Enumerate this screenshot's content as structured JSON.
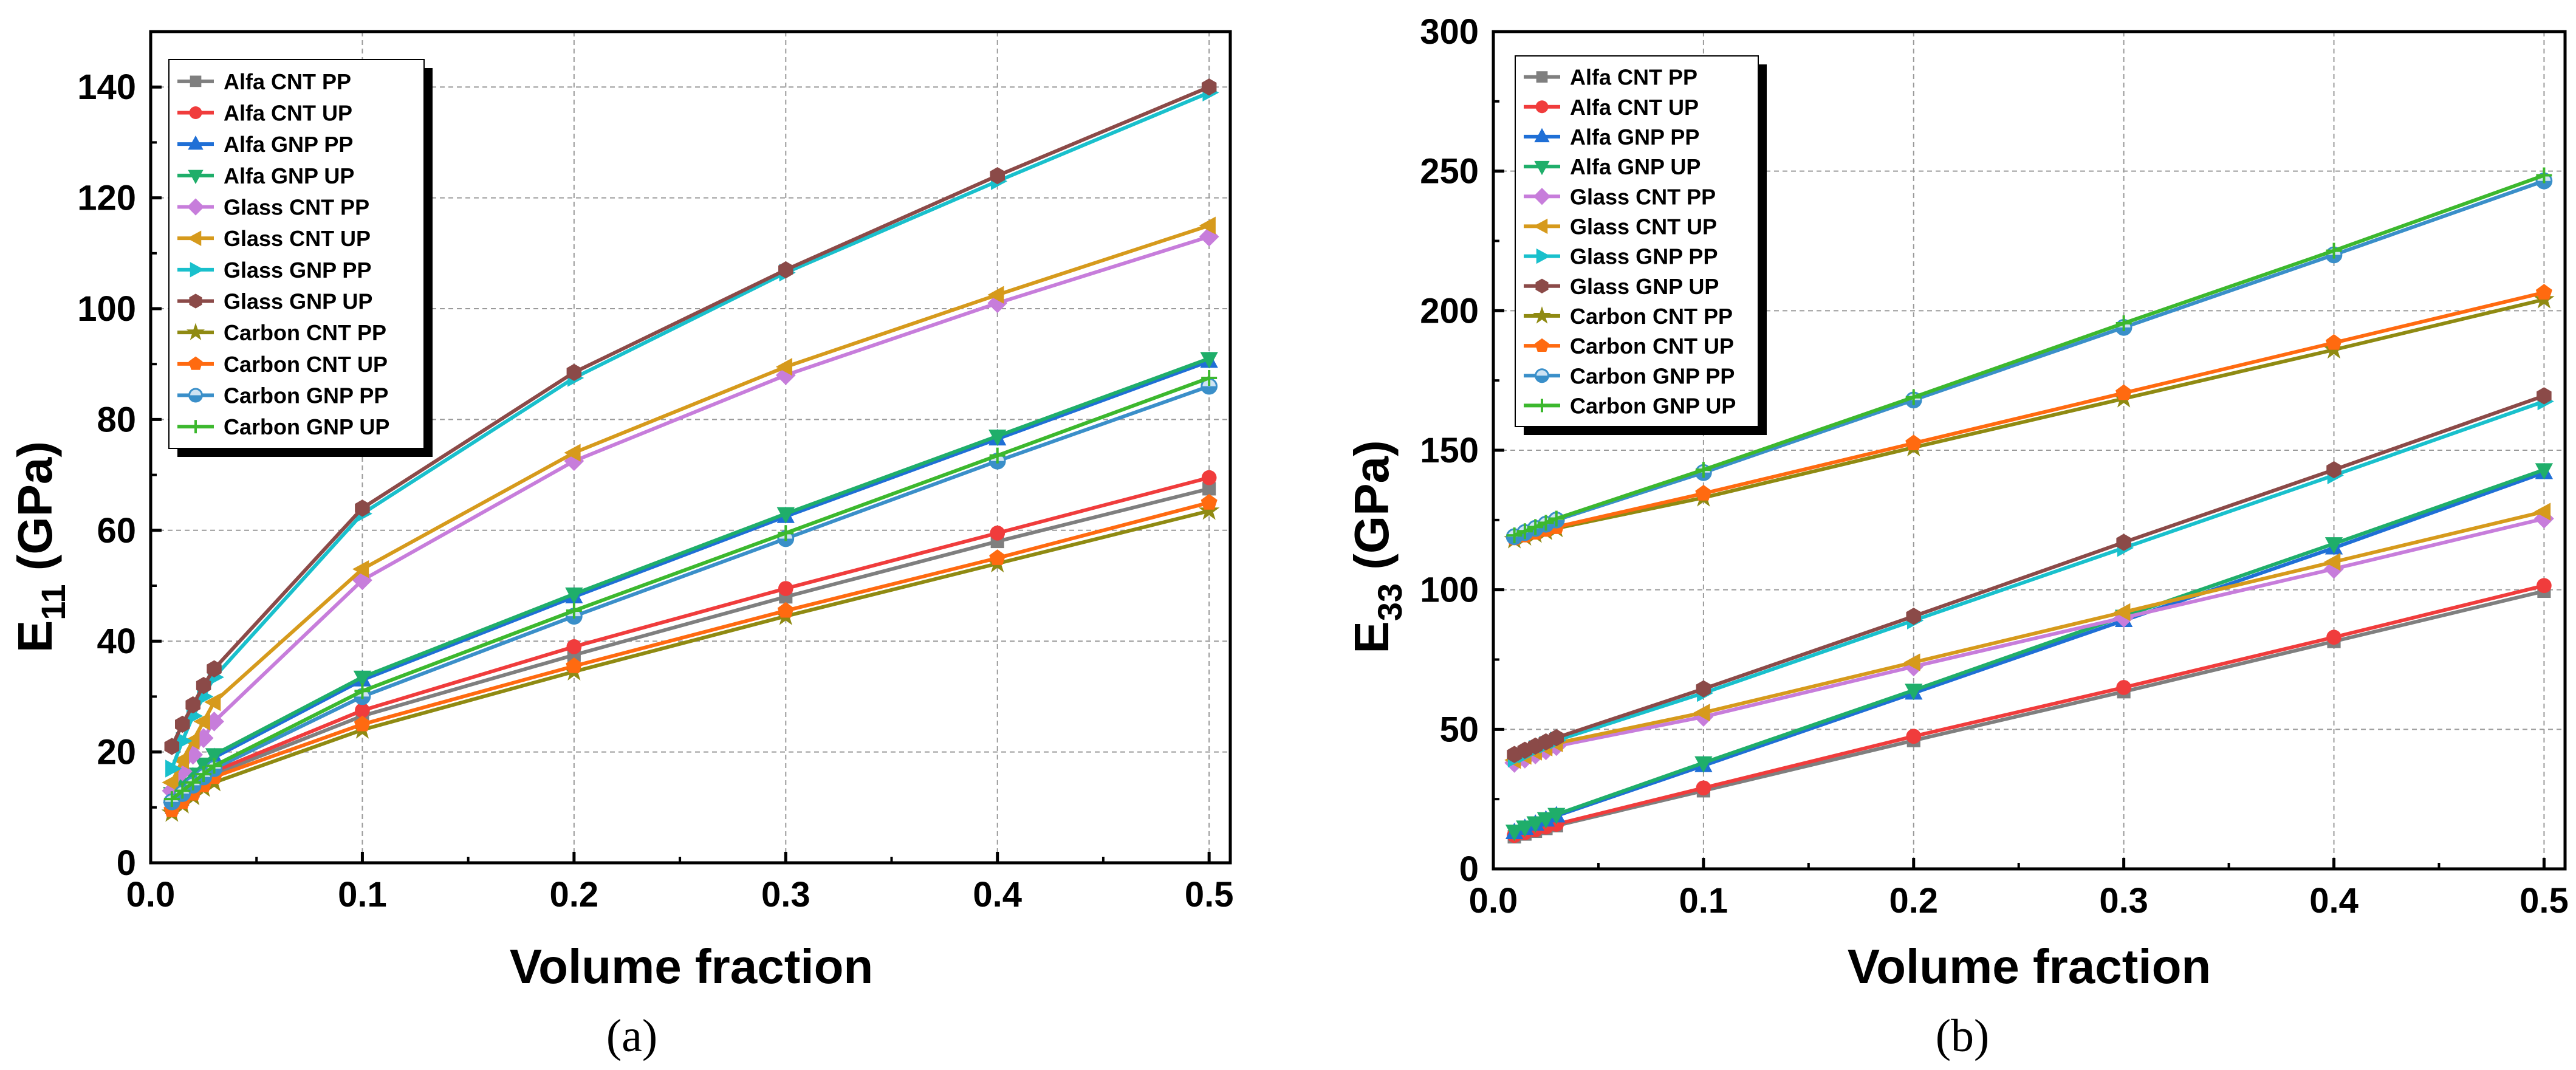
{
  "chart_data": [
    {
      "type": "line",
      "caption": "(a)",
      "xlabel": "Volume fraction",
      "ylabel_main": "E",
      "ylabel_sub": "11",
      "ylabel_unit": " (GPa)",
      "xlim": [
        0.0,
        0.51
      ],
      "ylim": [
        0,
        150
      ],
      "xticks": [
        0.0,
        0.1,
        0.2,
        0.3,
        0.4,
        0.5
      ],
      "xtick_labels": [
        "0.0",
        "0.1",
        "0.2",
        "0.3",
        "0.4",
        "0.5"
      ],
      "yticks": [
        0,
        20,
        40,
        60,
        80,
        100,
        120,
        140
      ],
      "ytick_labels": [
        "0",
        "20",
        "40",
        "60",
        "80",
        "100",
        "120",
        "140"
      ],
      "grid": true,
      "legend_position": "top-left",
      "x": [
        0.01,
        0.015,
        0.02,
        0.025,
        0.03,
        0.1,
        0.2,
        0.3,
        0.4,
        0.5
      ],
      "series": [
        {
          "name": "Alfa CNT PP",
          "color": "#7f7f7f",
          "marker": "square",
          "values": [
            10,
            11.5,
            13,
            14.5,
            16,
            26.5,
            37.5,
            48,
            58,
            67.5
          ]
        },
        {
          "name": "Alfa CNT UP",
          "color": "#f03c3c",
          "marker": "circle",
          "values": [
            10.5,
            12,
            13.5,
            15,
            16.5,
            27.5,
            39,
            49.5,
            59.5,
            69.5
          ]
        },
        {
          "name": "Alfa GNP PP",
          "color": "#1f6fd6",
          "marker": "triangle-up",
          "values": [
            12,
            13.8,
            15.5,
            17.2,
            19,
            33,
            48,
            62.5,
            76.5,
            90.5
          ]
        },
        {
          "name": "Alfa GNP UP",
          "color": "#1fae6a",
          "marker": "triangle-down",
          "values": [
            12.5,
            14.2,
            16,
            17.8,
            19.5,
            33.5,
            48.5,
            63,
            77,
            91
          ]
        },
        {
          "name": "Glass CNT PP",
          "color": "#c77ddb",
          "marker": "diamond",
          "values": [
            13,
            16.5,
            19.5,
            22.5,
            25.5,
            51,
            72.5,
            88,
            101,
            113
          ]
        },
        {
          "name": "Glass CNT UP",
          "color": "#d69a1c",
          "marker": "triangle-left",
          "values": [
            14.5,
            18.5,
            22,
            25.5,
            29,
            53,
            74,
            89.5,
            102.5,
            115
          ]
        },
        {
          "name": "Glass GNP PP",
          "color": "#19c0cc",
          "marker": "triangle-right",
          "values": [
            17,
            22,
            26.5,
            30,
            33.5,
            63,
            87.5,
            106.5,
            123,
            139
          ]
        },
        {
          "name": "Glass GNP UP",
          "color": "#8b4a48",
          "marker": "hexagon",
          "values": [
            21,
            25,
            28.5,
            32,
            35,
            64,
            88.5,
            107,
            124,
            140
          ]
        },
        {
          "name": "Carbon CNT PP",
          "color": "#8f8a12",
          "marker": "star",
          "values": [
            9,
            10.5,
            12,
            13.5,
            14.5,
            24,
            34.5,
            44.5,
            54,
            63.5
          ]
        },
        {
          "name": "Carbon CNT UP",
          "color": "#ff6a10",
          "marker": "pentagon",
          "values": [
            9.5,
            11,
            12.5,
            14,
            15.5,
            25,
            35.5,
            45.5,
            55,
            65
          ]
        },
        {
          "name": "Carbon GNP PP",
          "color": "#3a8fc9",
          "marker": "half-circle",
          "values": [
            11,
            12.5,
            14,
            15.5,
            17,
            30,
            44.5,
            58.5,
            72.5,
            86
          ]
        },
        {
          "name": "Carbon GNP UP",
          "color": "#3cb82e",
          "marker": "plus",
          "values": [
            11.5,
            13,
            14.5,
            16,
            17.5,
            31,
            45.5,
            59.5,
            73.5,
            87.5
          ]
        }
      ]
    },
    {
      "type": "line",
      "caption": "(b)",
      "xlabel": "Volume fraction",
      "ylabel_main": "E",
      "ylabel_sub": "33",
      "ylabel_unit": " (GPa)",
      "xlim": [
        0.0,
        0.51
      ],
      "ylim": [
        0,
        300
      ],
      "xticks": [
        0.0,
        0.1,
        0.2,
        0.3,
        0.4,
        0.5
      ],
      "xtick_labels": [
        "0.0",
        "0.1",
        "0.2",
        "0.3",
        "0.4",
        "0.5"
      ],
      "yticks": [
        0,
        50,
        100,
        150,
        200,
        250,
        300
      ],
      "ytick_labels": [
        "0",
        "50",
        "100",
        "150",
        "200",
        "250",
        "300"
      ],
      "grid": true,
      "legend_position": "top-left",
      "x": [
        0.01,
        0.015,
        0.02,
        0.025,
        0.03,
        0.1,
        0.2,
        0.3,
        0.4,
        0.5
      ],
      "series": [
        {
          "name": "Alfa CNT PP",
          "color": "#7f7f7f",
          "marker": "square",
          "values": [
            11.5,
            12.5,
            13.5,
            14.5,
            15.5,
            28,
            46,
            63.5,
            81.5,
            99.5
          ]
        },
        {
          "name": "Alfa CNT UP",
          "color": "#f03c3c",
          "marker": "circle",
          "values": [
            12,
            13,
            14,
            15,
            16,
            29,
            47.5,
            65,
            83,
            101.5
          ]
        },
        {
          "name": "Alfa GNP PP",
          "color": "#1f6fd6",
          "marker": "triangle-up",
          "values": [
            13,
            14.5,
            16,
            17.5,
            19,
            37,
            63,
            89,
            115,
            142
          ]
        },
        {
          "name": "Alfa GNP UP",
          "color": "#1fae6a",
          "marker": "triangle-down",
          "values": [
            13.5,
            15,
            16.5,
            18,
            19.5,
            38,
            64,
            90.5,
            116.5,
            143
          ]
        },
        {
          "name": "Glass CNT PP",
          "color": "#c77ddb",
          "marker": "diamond",
          "values": [
            38,
            39.5,
            41,
            42.5,
            44,
            54.5,
            72.5,
            90,
            107.5,
            125.5
          ]
        },
        {
          "name": "Glass CNT UP",
          "color": "#d69a1c",
          "marker": "triangle-left",
          "values": [
            39,
            40.5,
            42,
            43.5,
            45,
            56,
            74,
            92,
            110,
            128
          ]
        },
        {
          "name": "Glass GNP PP",
          "color": "#19c0cc",
          "marker": "triangle-right",
          "values": [
            39.5,
            41,
            43,
            44.5,
            46,
            63,
            89,
            115,
            141,
            167.5
          ]
        },
        {
          "name": "Glass GNP UP",
          "color": "#8b4a48",
          "marker": "hexagon",
          "values": [
            41,
            42.5,
            44,
            45.5,
            47,
            64.5,
            90.5,
            117,
            143,
            169.5
          ]
        },
        {
          "name": "Carbon CNT PP",
          "color": "#8f8a12",
          "marker": "star",
          "values": [
            118,
            119,
            120,
            121,
            122,
            133,
            151,
            168.5,
            186,
            204
          ]
        },
        {
          "name": "Carbon CNT UP",
          "color": "#ff6a10",
          "marker": "pentagon",
          "values": [
            118.5,
            119.5,
            120.5,
            121.5,
            122.5,
            134.5,
            152.5,
            170.5,
            188.5,
            206.5
          ]
        },
        {
          "name": "Carbon GNP PP",
          "color": "#3a8fc9",
          "marker": "half-circle",
          "values": [
            119,
            120.5,
            122,
            123.5,
            125,
            142,
            168,
            194,
            220,
            246.5
          ]
        },
        {
          "name": "Carbon GNP UP",
          "color": "#3cb82e",
          "marker": "plus",
          "values": [
            119.5,
            121,
            122.5,
            124,
            125.5,
            143,
            169,
            195.5,
            221.5,
            248.5
          ]
        }
      ]
    }
  ]
}
